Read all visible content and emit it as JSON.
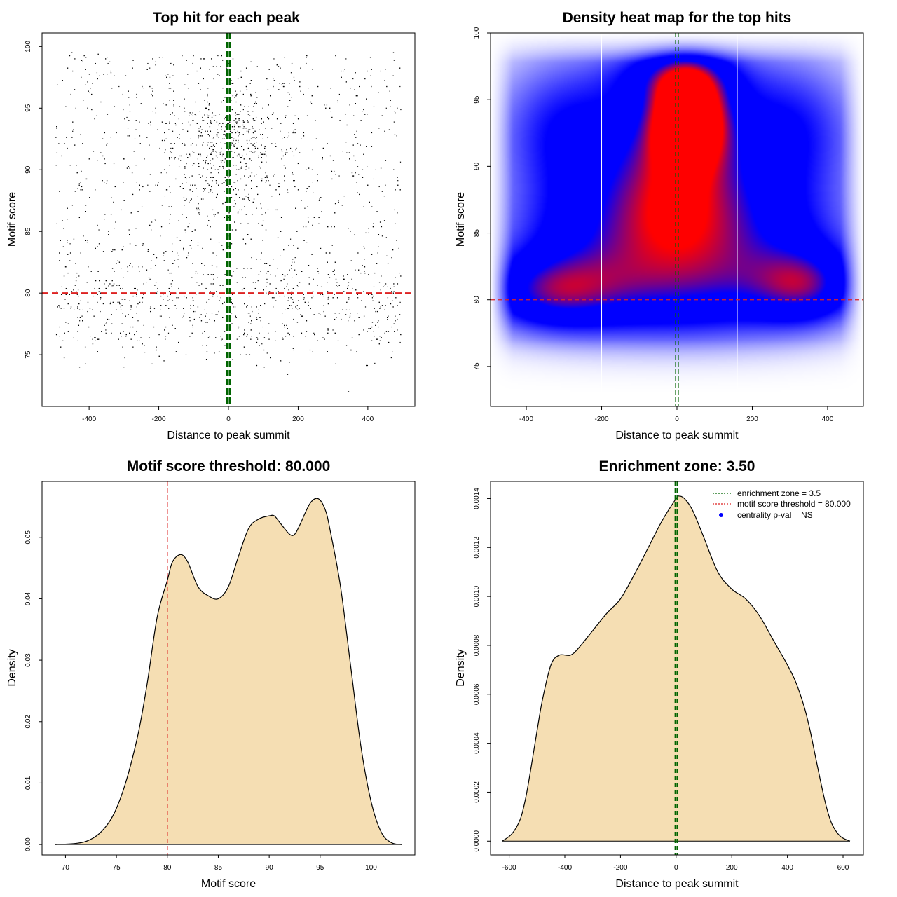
{
  "colors": {
    "threshold_line": "#dd2222",
    "zone_line": "#006400",
    "density_fill": "#f5deb3",
    "heat_low": "#ffffff",
    "heat_mid": "#0000ff",
    "heat_high": "#ff0000",
    "points": "#000000"
  },
  "chart_data": [
    {
      "id": "scatter",
      "type": "scatter",
      "title": "Top hit for each peak",
      "xlabel": "Distance to peak summit",
      "ylabel": "Motif score",
      "xlim": [
        -535,
        535
      ],
      "ylim": [
        70.8,
        101.1
      ],
      "xticks": [
        -400,
        -200,
        0,
        200,
        400
      ],
      "yticks": [
        75,
        80,
        85,
        90,
        95,
        100
      ],
      "threshold_y": 80,
      "zone_x": [
        -3.5,
        3.5
      ],
      "n_points": 3400,
      "x_range": [
        -495,
        495
      ],
      "score_range": [
        74,
        100
      ],
      "note": "Approx. 3400 top-hit points (distance, score); dense near distance 0 and scores 88-96"
    },
    {
      "id": "heatmap",
      "type": "heatmap",
      "title": "Density heat map for the top hits",
      "xlabel": "Distance to peak summit",
      "ylabel": "Motif score",
      "xlim": [
        -495,
        495
      ],
      "ylim": [
        72,
        100
      ],
      "xticks": [
        -400,
        -200,
        0,
        200,
        400
      ],
      "yticks": [
        75,
        80,
        85,
        90,
        95,
        100
      ],
      "threshold_y": 80,
      "zone_x": [
        -3.5,
        3.5
      ],
      "white_lines_x": [
        -200,
        160
      ],
      "hotspot": {
        "x": 30,
        "y": 94
      },
      "density_components": [
        {
          "x": 30,
          "y": 94,
          "sx": 70,
          "sy": 2.5,
          "w": 1.0
        },
        {
          "x": 0,
          "y": 90,
          "sx": 140,
          "sy": 4.5,
          "w": 0.7
        },
        {
          "x": -300,
          "y": 93,
          "sx": 140,
          "sy": 4.0,
          "w": 0.45
        },
        {
          "x": 300,
          "y": 93,
          "sx": 140,
          "sy": 4.0,
          "w": 0.45
        },
        {
          "x": -200,
          "y": 84,
          "sx": 200,
          "sy": 4.0,
          "w": 0.55
        },
        {
          "x": 200,
          "y": 84,
          "sx": 200,
          "sy": 4.0,
          "w": 0.55
        },
        {
          "x": -350,
          "y": 80.5,
          "sx": 130,
          "sy": 2.0,
          "w": 0.5
        },
        {
          "x": 350,
          "y": 81,
          "sx": 100,
          "sy": 2.0,
          "w": 0.5
        },
        {
          "x": 0,
          "y": 80,
          "sx": 250,
          "sy": 2.5,
          "w": 0.3
        },
        {
          "x": 0,
          "y": 97,
          "sx": 120,
          "sy": 1.5,
          "w": 0.4
        }
      ]
    },
    {
      "id": "score_density",
      "type": "area",
      "title": "Motif score threshold: 80.000",
      "xlabel": "Motif score",
      "ylabel": "Density",
      "xlim": [
        67.7,
        104.3
      ],
      "ylim": [
        -0.0017,
        0.0591
      ],
      "xticks": [
        70,
        75,
        80,
        85,
        90,
        95,
        100
      ],
      "yticks": [
        0.0,
        0.01,
        0.02,
        0.03,
        0.04,
        0.05
      ],
      "ytick_labels": [
        "0.00",
        "0.01",
        "0.02",
        "0.03",
        "0.04",
        "0.05"
      ],
      "threshold_x": 80,
      "x": [
        69.0,
        72.0,
        74.0,
        75.5,
        77.0,
        78.0,
        79.0,
        80.0,
        80.5,
        81.3,
        82.0,
        83.0,
        84.0,
        85.0,
        86.0,
        87.0,
        88.0,
        89.0,
        90.0,
        90.5,
        91.0,
        92.0,
        92.5,
        93.0,
        94.0,
        94.8,
        95.5,
        96.0,
        97.0,
        98.0,
        99.0,
        100.0,
        101.0,
        102.0,
        103.0
      ],
      "values": [
        0.0,
        0.0005,
        0.003,
        0.008,
        0.017,
        0.026,
        0.037,
        0.043,
        0.046,
        0.0472,
        0.046,
        0.042,
        0.0405,
        0.04,
        0.042,
        0.047,
        0.0515,
        0.053,
        0.0535,
        0.0535,
        0.0525,
        0.0505,
        0.0505,
        0.052,
        0.0555,
        0.0563,
        0.0545,
        0.051,
        0.042,
        0.029,
        0.016,
        0.007,
        0.002,
        0.0003,
        0.0
      ]
    },
    {
      "id": "distance_density",
      "type": "area",
      "title": "Enrichment zone: 3.50",
      "xlabel": "Distance to peak summit",
      "ylabel": "Density",
      "xlim": [
        -667,
        673
      ],
      "ylim": [
        -5.65e-05,
        0.00147
      ],
      "xticks": [
        -600,
        -400,
        -200,
        0,
        200,
        400,
        600
      ],
      "yticks": [
        0,
        0.0002,
        0.0004,
        0.0006,
        0.0008,
        0.001,
        0.0012,
        0.0014
      ],
      "ytick_labels": [
        "0.0000",
        "0.0002",
        "0.0004",
        "0.0006",
        "0.0008",
        "0.0010",
        "0.0012",
        "0.0014"
      ],
      "zone_x": [
        -3.5,
        3.5
      ],
      "x": [
        -625,
        -590,
        -560,
        -540,
        -520,
        -500,
        -480,
        -450,
        -420,
        -380,
        -350,
        -300,
        -250,
        -200,
        -150,
        -100,
        -50,
        0,
        10,
        30,
        60,
        100,
        150,
        200,
        250,
        300,
        350,
        400,
        430,
        460,
        480,
        500,
        520,
        540,
        560,
        590,
        625
      ],
      "values": [
        0.0,
        3e-05,
        9e-05,
        0.00018,
        0.00031,
        0.00045,
        0.00058,
        0.00072,
        0.00076,
        0.00076,
        0.00079,
        0.00086,
        0.00093,
        0.00099,
        0.00109,
        0.0012,
        0.00131,
        0.0014,
        0.00141,
        0.0014,
        0.00135,
        0.00124,
        0.0011,
        0.00103,
        0.00099,
        0.00092,
        0.00082,
        0.00072,
        0.00065,
        0.00055,
        0.00046,
        0.00035,
        0.00024,
        0.00014,
        7e-05,
        2e-05,
        0.0
      ],
      "legend": [
        {
          "label": "enrichment zone = 3.5",
          "style": "dotted-green"
        },
        {
          "label": "motif score threshold = 80.000",
          "style": "dotted-red"
        },
        {
          "label": "centrality p-val = NS",
          "style": "dot-blue"
        }
      ],
      "legend_position": "top-right"
    }
  ]
}
